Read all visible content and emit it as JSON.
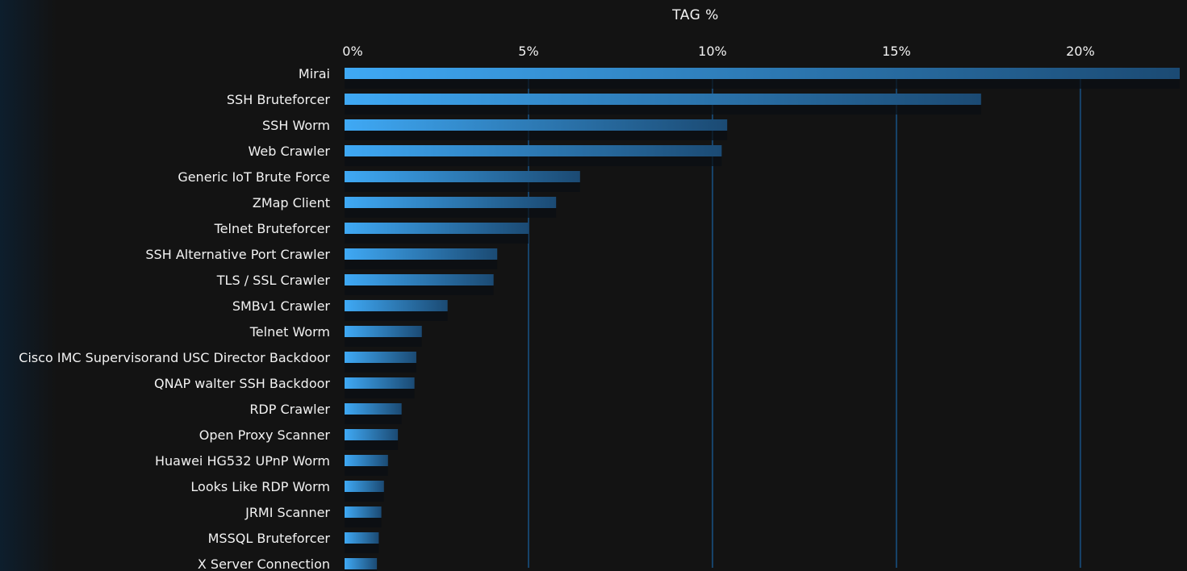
{
  "chart_data": {
    "type": "bar",
    "orientation": "horizontal",
    "title": "TAG %",
    "xlim": [
      0,
      22.7
    ],
    "ticks": [
      {
        "value": 0,
        "label": "0%"
      },
      {
        "value": 5,
        "label": "5%"
      },
      {
        "value": 10,
        "label": "10%"
      },
      {
        "value": 15,
        "label": "15%"
      },
      {
        "value": 20,
        "label": "20%"
      }
    ],
    "grid": true,
    "categories": [
      "Mirai",
      "SSH Bruteforcer",
      "SSH Worm",
      "Web Crawler",
      "Generic IoT Brute Force",
      "ZMap Client",
      "Telnet Bruteforcer",
      "SSH Alternative Port Crawler",
      "TLS / SSL Crawler",
      "SMBv1 Crawler",
      "Telnet Worm",
      "Cisco IMC Supervisorand USC Director Backdoor",
      "QNAP walter SSH Backdoor",
      "RDP Crawler",
      "Open Proxy Scanner",
      "Huawei HG532 UPnP Worm",
      "Looks Like RDP Worm",
      "JRMI Scanner",
      "MSSQL Bruteforcer",
      "X Server Connection"
    ],
    "values": [
      22.7,
      17.3,
      10.4,
      10.25,
      6.4,
      5.75,
      5.0,
      4.15,
      4.05,
      2.8,
      2.1,
      1.95,
      1.9,
      1.55,
      1.45,
      1.18,
      1.07,
      1.0,
      0.93,
      0.88
    ]
  },
  "colors": {
    "background": "#131313",
    "bar_start": "#3fa9f5",
    "bar_end": "#1b4a73",
    "grid": "#17446b",
    "text": "#f2f2f2"
  }
}
